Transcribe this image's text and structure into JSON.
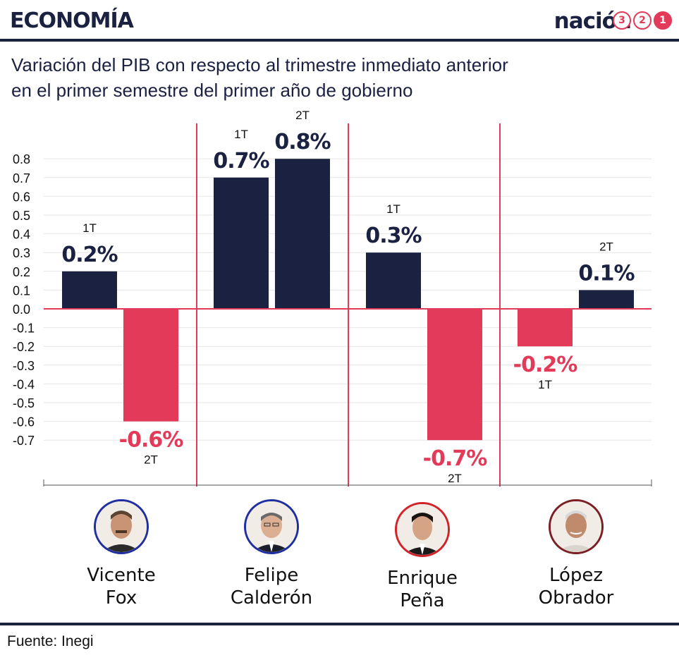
{
  "header": {
    "section": "ECONOMÍA",
    "brand": "nación",
    "brand_digits": [
      "3",
      "2",
      "1"
    ]
  },
  "subtitle": {
    "line1": "Variación del PIB con respecto al trimestre inmediato anterior",
    "line2": "en el primer semestre del primer año de gobierno"
  },
  "colors": {
    "positive": "#1b2140",
    "negative": "#e23a58",
    "divider": "#e23a58",
    "grid": "#e6e6e6"
  },
  "chart_data": {
    "type": "bar",
    "title": "Variación del PIB con respecto al trimestre inmediato anterior en el primer semestre del primer año de gobierno",
    "ylim": [
      -0.9,
      0.9
    ],
    "yticks": [
      "0.8",
      "0.7",
      "0.6",
      "0.5",
      "0.4",
      "0.3",
      "0.2",
      "0.1",
      "0.0",
      "-0.1",
      "-0.2",
      "-0.3",
      "-0.4",
      "-0.5",
      "-0.6",
      "-0.7"
    ],
    "ytick_values": [
      0.8,
      0.7,
      0.6,
      0.5,
      0.4,
      0.3,
      0.2,
      0.1,
      0.0,
      -0.1,
      -0.2,
      -0.3,
      -0.4,
      -0.5,
      -0.6,
      -0.7
    ],
    "grid": true,
    "groups": [
      {
        "name": "Vicente Fox",
        "bars": [
          {
            "quarter": "1T",
            "value": 0.2,
            "label": "0.2%"
          },
          {
            "quarter": "2T",
            "value": -0.6,
            "label": "-0.6%"
          }
        ]
      },
      {
        "name": "Felipe Calderón",
        "bars": [
          {
            "quarter": "1T",
            "value": 0.7,
            "label": "0.7%"
          },
          {
            "quarter": "2T",
            "value": 0.8,
            "label": "0.8%"
          }
        ]
      },
      {
        "name": "Enrique Peña",
        "bars": [
          {
            "quarter": "1T",
            "value": 0.3,
            "label": "0.3%"
          },
          {
            "quarter": "2T",
            "value": -0.7,
            "label": "-0.7%"
          }
        ]
      },
      {
        "name": "López Obrador",
        "bars": [
          {
            "quarter": "1T",
            "value": -0.2,
            "label": "-0.2%"
          },
          {
            "quarter": "2T",
            "value": 0.1,
            "label": "0.1%"
          }
        ]
      }
    ]
  },
  "presidents": [
    {
      "line1": "Vicente",
      "line2": "Fox",
      "ring": "#1f2fa0"
    },
    {
      "line1": "Felipe",
      "line2": "Calderón",
      "ring": "#1f2fa0"
    },
    {
      "line1": "Enrique",
      "line2": "Peña",
      "ring": "#d2232a"
    },
    {
      "line1": "López",
      "line2": "Obrador",
      "ring": "#7a1f24"
    }
  ],
  "footer": {
    "source": "Fuente: Inegi"
  }
}
